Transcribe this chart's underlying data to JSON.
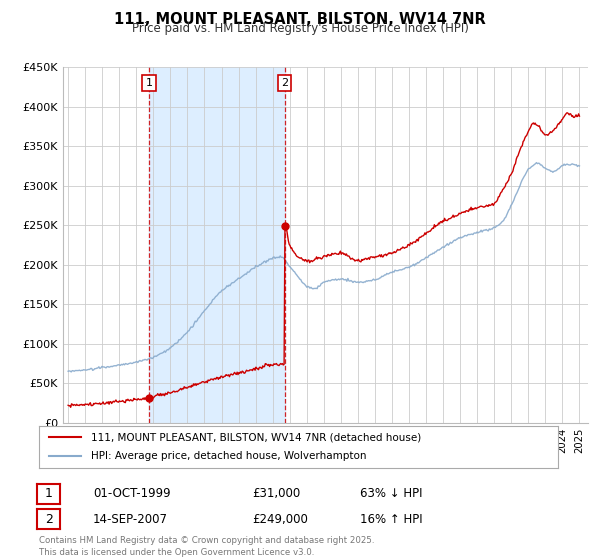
{
  "title": "111, MOUNT PLEASANT, BILSTON, WV14 7NR",
  "subtitle": "Price paid vs. HM Land Registry's House Price Index (HPI)",
  "legend_label_red": "111, MOUNT PLEASANT, BILSTON, WV14 7NR (detached house)",
  "legend_label_blue": "HPI: Average price, detached house, Wolverhampton",
  "footer": "Contains HM Land Registry data © Crown copyright and database right 2025.\nThis data is licensed under the Open Government Licence v3.0.",
  "annotation1_label": "1",
  "annotation1_date": "01-OCT-1999",
  "annotation1_price": "£31,000",
  "annotation1_hpi": "63% ↓ HPI",
  "annotation2_label": "2",
  "annotation2_date": "14-SEP-2007",
  "annotation2_price": "£249,000",
  "annotation2_hpi": "16% ↑ HPI",
  "shade_color": "#ddeeff",
  "red_color": "#cc0000",
  "blue_color": "#88aacc",
  "background_color": "#ffffff",
  "grid_color": "#cccccc",
  "ylim": [
    0,
    450000
  ],
  "yticks": [
    0,
    50000,
    100000,
    150000,
    200000,
    250000,
    300000,
    350000,
    400000,
    450000
  ],
  "ytick_labels": [
    "£0",
    "£50K",
    "£100K",
    "£150K",
    "£200K",
    "£250K",
    "£300K",
    "£350K",
    "£400K",
    "£450K"
  ],
  "xlim_start": 1994.7,
  "xlim_end": 2025.5,
  "marker1_x": 1999.75,
  "marker1_y": 31000,
  "marker2_x": 2007.71,
  "marker2_y": 249000,
  "vline1_x": 1999.75,
  "vline2_x": 2007.71,
  "hpi_years": [
    1995,
    1996,
    1997,
    1998,
    1999,
    2000,
    2001,
    2002,
    2003,
    2004,
    2005,
    2006,
    2007,
    2007.5,
    2008,
    2008.5,
    2009,
    2009.5,
    2010,
    2011,
    2012,
    2013,
    2014,
    2015,
    2016,
    2017,
    2018,
    2019,
    2020,
    2020.5,
    2021,
    2021.5,
    2022,
    2022.5,
    2023,
    2023.5,
    2024,
    2024.5,
    2025
  ],
  "hpi_vals": [
    65000,
    67000,
    70000,
    73000,
    77000,
    83000,
    95000,
    115000,
    142000,
    167000,
    182000,
    197000,
    208000,
    210000,
    198000,
    185000,
    173000,
    170000,
    178000,
    182000,
    178000,
    181000,
    191000,
    197000,
    209000,
    222000,
    234000,
    241000,
    247000,
    255000,
    275000,
    300000,
    320000,
    328000,
    322000,
    318000,
    325000,
    327000,
    325000
  ],
  "red_years": [
    1995,
    1996,
    1997,
    1998,
    1999,
    1999.75,
    2000,
    2001,
    2002,
    2003,
    2004,
    2005,
    2006,
    2007.0,
    2007.71,
    2007.72,
    2008,
    2009,
    2010,
    2011,
    2012,
    2013,
    2014,
    2015,
    2016,
    2017,
    2018,
    2019,
    2020,
    2020.5,
    2021,
    2021.5,
    2022,
    2022.3,
    2022.6,
    2023,
    2023.5,
    2024,
    2024.3,
    2024.6,
    2025
  ],
  "red_vals": [
    22000,
    23000,
    24500,
    27000,
    29500,
    31000,
    33000,
    38000,
    45000,
    52000,
    58000,
    63000,
    68000,
    74000,
    74500,
    249000,
    225000,
    205000,
    210000,
    215000,
    205000,
    210000,
    215000,
    225000,
    240000,
    255000,
    265000,
    272000,
    278000,
    295000,
    315000,
    345000,
    368000,
    380000,
    375000,
    365000,
    370000,
    385000,
    392000,
    388000,
    390000
  ]
}
